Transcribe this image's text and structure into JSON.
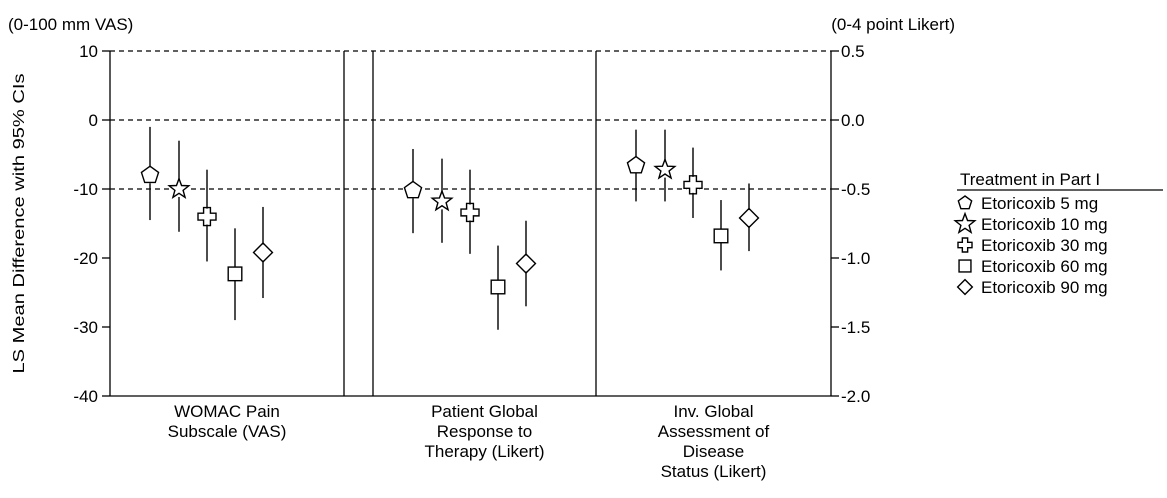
{
  "chart_data": {
    "type": "scatter",
    "subtype": "point estimates with 95% confidence interval error bars",
    "left_axis": {
      "unit_label": "(0-100 mm VAS)",
      "title": "LS Mean Difference with 95% CIs",
      "range": [
        -40,
        10
      ],
      "ticks": [
        10,
        0,
        -10,
        -20,
        -30,
        -40
      ],
      "tick_labels": [
        "10",
        "0",
        "-10",
        "-20",
        "-30",
        "-40"
      ]
    },
    "right_axis": {
      "unit_label": "(0-4 point Likert)",
      "range": [
        -2.0,
        0.5
      ],
      "ticks": [
        0.5,
        0.0,
        -0.5,
        -1.0,
        -1.5,
        -2.0
      ],
      "tick_labels": [
        "0.5",
        "0.0",
        "-0.5",
        "-1.0",
        "-1.5",
        "-2.0"
      ]
    },
    "reference_lines": {
      "style": "dashed",
      "left_axis_values": [
        10,
        0,
        -10
      ]
    },
    "panels": [
      {
        "label_lines": [
          "WOMAC Pain",
          "Subscale (VAS)"
        ],
        "axis": "left",
        "points": [
          {
            "series": "Etoricoxib 5 mg",
            "estimate": -8,
            "ci_lower": -14.5,
            "ci_upper": -1
          },
          {
            "series": "Etoricoxib 10 mg",
            "estimate": -10,
            "ci_lower": -16.2,
            "ci_upper": -3
          },
          {
            "series": "Etoricoxib 30 mg",
            "estimate": -14,
            "ci_lower": -20.5,
            "ci_upper": -7.2
          },
          {
            "series": "Etoricoxib 60 mg",
            "estimate": -22.3,
            "ci_lower": -29,
            "ci_upper": -15.7
          },
          {
            "series": "Etoricoxib 90 mg",
            "estimate": -19.2,
            "ci_lower": -25.8,
            "ci_upper": -12.6
          }
        ]
      },
      {
        "label_lines": [
          "Patient Global",
          "Response to",
          "Therapy (Likert)"
        ],
        "axis": "right",
        "points": [
          {
            "series": "Etoricoxib 5 mg",
            "estimate": -0.51,
            "ci_lower": -0.82,
            "ci_upper": -0.21
          },
          {
            "series": "Etoricoxib 10 mg",
            "estimate": -0.59,
            "ci_lower": -0.89,
            "ci_upper": -0.28
          },
          {
            "series": "Etoricoxib 30 mg",
            "estimate": -0.67,
            "ci_lower": -0.97,
            "ci_upper": -0.36
          },
          {
            "series": "Etoricoxib 60 mg",
            "estimate": -1.21,
            "ci_lower": -1.52,
            "ci_upper": -0.91
          },
          {
            "series": "Etoricoxib 90 mg",
            "estimate": -1.04,
            "ci_lower": -1.35,
            "ci_upper": -0.73
          }
        ]
      },
      {
        "label_lines": [
          "Inv. Global",
          "Assessment of",
          "Disease",
          "Status (Likert)"
        ],
        "axis": "right",
        "points": [
          {
            "series": "Etoricoxib 5 mg",
            "estimate": -0.33,
            "ci_lower": -0.59,
            "ci_upper": -0.07
          },
          {
            "series": "Etoricoxib 10 mg",
            "estimate": -0.36,
            "ci_lower": -0.59,
            "ci_upper": -0.07
          },
          {
            "series": "Etoricoxib 30 mg",
            "estimate": -0.47,
            "ci_lower": -0.71,
            "ci_upper": -0.2
          },
          {
            "series": "Etoricoxib 60 mg",
            "estimate": -0.84,
            "ci_lower": -1.09,
            "ci_upper": -0.58
          },
          {
            "series": "Etoricoxib 90 mg",
            "estimate": -0.71,
            "ci_lower": -0.95,
            "ci_upper": -0.46
          }
        ]
      }
    ],
    "legend": {
      "title": "Treatment in Part I",
      "placement": "right",
      "entries": [
        {
          "name": "Etoricoxib 5 mg",
          "marker": "pentagon"
        },
        {
          "name": "Etoricoxib 10 mg",
          "marker": "star"
        },
        {
          "name": "Etoricoxib 30 mg",
          "marker": "plus"
        },
        {
          "name": "Etoricoxib 60 mg",
          "marker": "square"
        },
        {
          "name": "Etoricoxib 90 mg",
          "marker": "diamond"
        }
      ]
    },
    "colors": {
      "ink": "#000000",
      "background": "#ffffff"
    }
  }
}
